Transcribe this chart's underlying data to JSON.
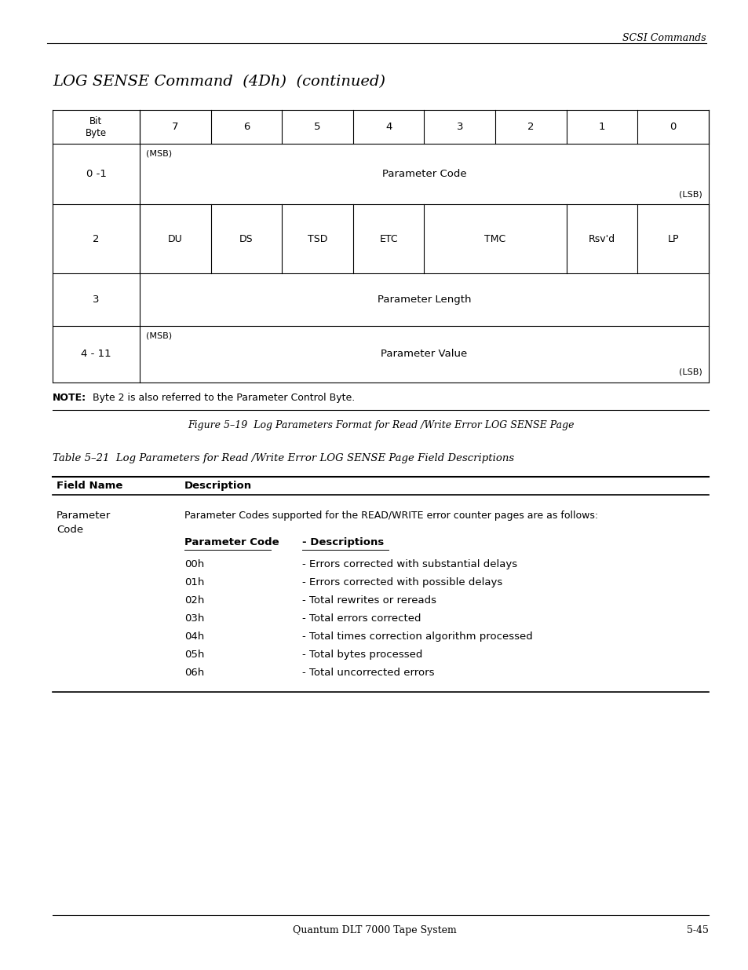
{
  "page_header_right": "SCSI Commands",
  "title": "LOG SENSE Command  (4Dh)  (continued)",
  "figure_caption": "Figure 5–19  Log Parameters Format for Read /Write Error LOG SENSE Page",
  "table_title": "Table 5–21  Log Parameters for Read /Write Error LOG SENSE Page Field Descriptions",
  "note_bold": "NOTE:",
  "note_rest": "  Byte 2 is also referred to the Parameter Control Byte.",
  "footer_left": "Quantum DLT 7000 Tape System",
  "footer_right": "5-45",
  "background_color": "#ffffff",
  "text_color": "#000000"
}
